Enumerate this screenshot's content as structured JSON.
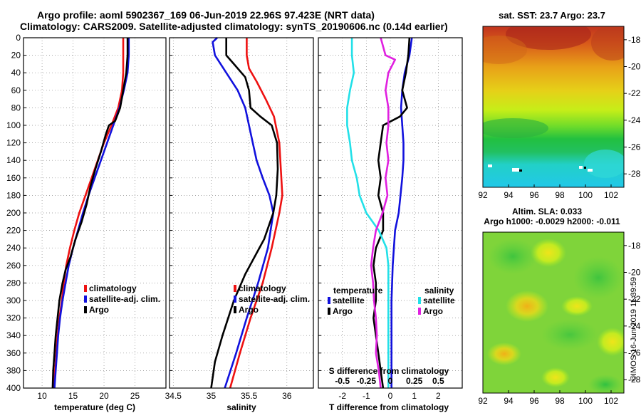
{
  "header": {
    "line1": "Argo profile: aoml 5902367_169 06-Jun-2019 22.96S 97.423E (NRT data)",
    "line2": "Climatology: CARS2009. Satellite-adjusted climatology: synTS_20190606.nc (0.14d earlier)"
  },
  "colors": {
    "climatology": "#ee1111",
    "satellite": "#1111dd",
    "argo": "#000000",
    "sal_sat": "#22e0e8",
    "sal_argo": "#e020e0",
    "grid": "#888888"
  },
  "chart_data": [
    {
      "id": "temperature",
      "type": "line",
      "xlabel": "temperature (deg C)",
      "ylabel": "",
      "xlim": [
        7,
        30
      ],
      "ylim": [
        400,
        0
      ],
      "xticks": [
        10,
        15,
        20,
        25
      ],
      "yticks": [
        0,
        20,
        40,
        60,
        80,
        100,
        120,
        140,
        160,
        180,
        200,
        220,
        240,
        260,
        280,
        300,
        320,
        340,
        360,
        380,
        400
      ],
      "legend": [
        "climatology",
        "satellite-adj. clim.",
        "Argo"
      ],
      "series": [
        {
          "name": "climatology",
          "color": "#ee1111",
          "points": [
            [
              23.1,
              0
            ],
            [
              23.1,
              40
            ],
            [
              22.9,
              60
            ],
            [
              22.3,
              80
            ],
            [
              21.2,
              100
            ],
            [
              20.0,
              120
            ],
            [
              19.0,
              140
            ],
            [
              18.0,
              160
            ],
            [
              17.0,
              180
            ],
            [
              16.0,
              200
            ],
            [
              15.2,
              220
            ],
            [
              14.5,
              240
            ],
            [
              13.9,
              260
            ],
            [
              13.5,
              280
            ],
            [
              13.2,
              300
            ],
            [
              12.8,
              320
            ],
            [
              12.5,
              340
            ],
            [
              12.3,
              360
            ],
            [
              12.1,
              380
            ],
            [
              11.9,
              400
            ]
          ]
        },
        {
          "name": "satellite-adj. clim.",
          "color": "#1111dd",
          "points": [
            [
              24.0,
              0
            ],
            [
              24.0,
              20
            ],
            [
              23.8,
              40
            ],
            [
              23.2,
              60
            ],
            [
              22.5,
              80
            ],
            [
              21.5,
              100
            ],
            [
              20.5,
              120
            ],
            [
              19.5,
              140
            ],
            [
              18.5,
              160
            ],
            [
              17.5,
              180
            ],
            [
              16.6,
              200
            ],
            [
              15.8,
              220
            ],
            [
              15.0,
              240
            ],
            [
              14.3,
              260
            ],
            [
              13.8,
              280
            ],
            [
              13.3,
              300
            ],
            [
              12.9,
              320
            ],
            [
              12.6,
              340
            ],
            [
              12.4,
              360
            ],
            [
              12.2,
              380
            ],
            [
              12.0,
              400
            ]
          ]
        },
        {
          "name": "Argo",
          "color": "#000000",
          "points": [
            [
              23.8,
              0
            ],
            [
              23.8,
              20
            ],
            [
              23.6,
              40
            ],
            [
              23.1,
              60
            ],
            [
              22.6,
              80
            ],
            [
              21.8,
              95
            ],
            [
              20.8,
              100
            ],
            [
              20.3,
              110
            ],
            [
              19.5,
              130
            ],
            [
              18.6,
              150
            ],
            [
              17.8,
              170
            ],
            [
              17.2,
              190
            ],
            [
              16.4,
              210
            ],
            [
              15.4,
              230
            ],
            [
              14.6,
              250
            ],
            [
              13.8,
              265
            ],
            [
              13.3,
              280
            ],
            [
              12.8,
              300
            ],
            [
              12.5,
              320
            ],
            [
              12.2,
              340
            ],
            [
              12.0,
              360
            ],
            [
              11.8,
              380
            ],
            [
              11.7,
              400
            ]
          ]
        }
      ]
    },
    {
      "id": "salinity",
      "type": "line",
      "xlabel": "salinity",
      "ylabel": "",
      "xlim": [
        34.45,
        36.35
      ],
      "ylim": [
        400,
        0
      ],
      "xticks": [
        34.5,
        35,
        35.5,
        36
      ],
      "legend": [
        "climatology",
        "satellite-adj. clim.",
        "Argo"
      ],
      "series": [
        {
          "name": "climatology",
          "color": "#ee1111",
          "points": [
            [
              35.47,
              0
            ],
            [
              35.47,
              20
            ],
            [
              35.5,
              35
            ],
            [
              35.6,
              50
            ],
            [
              35.72,
              70
            ],
            [
              35.83,
              90
            ],
            [
              35.9,
              120
            ],
            [
              35.92,
              150
            ],
            [
              35.94,
              180
            ],
            [
              35.9,
              200
            ],
            [
              35.8,
              240
            ],
            [
              35.68,
              280
            ],
            [
              35.52,
              320
            ],
            [
              35.38,
              360
            ],
            [
              35.25,
              400
            ]
          ]
        },
        {
          "name": "satellite-adj. clim.",
          "color": "#1111dd",
          "points": [
            [
              35.08,
              0
            ],
            [
              35.02,
              5
            ],
            [
              35.05,
              20
            ],
            [
              35.2,
              40
            ],
            [
              35.35,
              60
            ],
            [
              35.45,
              80
            ],
            [
              35.5,
              100
            ],
            [
              35.55,
              120
            ],
            [
              35.6,
              140
            ],
            [
              35.68,
              160
            ],
            [
              35.77,
              180
            ],
            [
              35.82,
              200
            ],
            [
              35.75,
              240
            ],
            [
              35.62,
              280
            ],
            [
              35.47,
              320
            ],
            [
              35.33,
              360
            ],
            [
              35.18,
              400
            ]
          ]
        },
        {
          "name": "Argo",
          "color": "#000000",
          "points": [
            [
              35.2,
              0
            ],
            [
              35.2,
              20
            ],
            [
              35.3,
              30
            ],
            [
              35.45,
              45
            ],
            [
              35.5,
              60
            ],
            [
              35.52,
              80
            ],
            [
              35.65,
              90
            ],
            [
              35.8,
              100
            ],
            [
              35.87,
              120
            ],
            [
              35.88,
              150
            ],
            [
              35.86,
              180
            ],
            [
              35.82,
              200
            ],
            [
              35.7,
              230
            ],
            [
              35.45,
              270
            ],
            [
              35.3,
              300
            ],
            [
              35.15,
              340
            ],
            [
              35.05,
              370
            ],
            [
              35.0,
              400
            ]
          ]
        }
      ]
    },
    {
      "id": "differences",
      "type": "line",
      "xlabel": "T difference from climatology",
      "x2label": "S difference from climatology",
      "xlim": [
        -3,
        3
      ],
      "x2lim": [
        -0.75,
        0.75
      ],
      "ylim": [
        400,
        0
      ],
      "xticks": [
        -2,
        -1,
        0,
        1,
        2
      ],
      "x2ticks": [
        -0.5,
        -0.25,
        0,
        0.25,
        0.5
      ],
      "legend_temperature": {
        "title": "temperature",
        "items": [
          "satellite",
          "Argo"
        ]
      },
      "legend_salinity": {
        "title": "salinity",
        "items": [
          "satellite",
          "Argo"
        ]
      },
      "series": [
        {
          "name": "T satellite",
          "color": "#1111dd",
          "points": [
            [
              0.9,
              0
            ],
            [
              0.8,
              20
            ],
            [
              0.6,
              40
            ],
            [
              0.5,
              60
            ],
            [
              0.45,
              80
            ],
            [
              0.5,
              100
            ],
            [
              0.55,
              120
            ],
            [
              0.55,
              140
            ],
            [
              0.5,
              160
            ],
            [
              0.35,
              200
            ],
            [
              0.2,
              220
            ],
            [
              0.1,
              260
            ],
            [
              0.05,
              300
            ],
            [
              0.05,
              340
            ],
            [
              0.05,
              400
            ]
          ]
        },
        {
          "name": "T Argo",
          "color": "#000000",
          "points": [
            [
              0.8,
              0
            ],
            [
              0.75,
              20
            ],
            [
              0.65,
              40
            ],
            [
              0.5,
              60
            ],
            [
              0.6,
              70
            ],
            [
              0.7,
              80
            ],
            [
              0.4,
              90
            ],
            [
              -0.3,
              100
            ],
            [
              -0.4,
              120
            ],
            [
              -0.5,
              140
            ],
            [
              -0.4,
              160
            ],
            [
              -0.5,
              180
            ],
            [
              -0.3,
              200
            ],
            [
              -0.3,
              220
            ],
            [
              -0.6,
              240
            ],
            [
              -0.7,
              260
            ],
            [
              -0.6,
              280
            ],
            [
              -0.6,
              300
            ],
            [
              -0.7,
              320
            ],
            [
              -0.6,
              340
            ],
            [
              -0.5,
              360
            ],
            [
              -0.4,
              380
            ],
            [
              -0.3,
              400
            ]
          ]
        },
        {
          "name": "S satellite",
          "color": "#22e0e8",
          "axis": "x2",
          "points": [
            [
              -0.4,
              0
            ],
            [
              -0.4,
              20
            ],
            [
              -0.38,
              40
            ],
            [
              -0.42,
              60
            ],
            [
              -0.45,
              80
            ],
            [
              -0.45,
              100
            ],
            [
              -0.42,
              120
            ],
            [
              -0.4,
              140
            ],
            [
              -0.35,
              160
            ],
            [
              -0.32,
              180
            ],
            [
              -0.25,
              200
            ],
            [
              -0.12,
              220
            ],
            [
              -0.04,
              240
            ],
            [
              -0.02,
              260
            ],
            [
              -0.02,
              300
            ],
            [
              -0.02,
              340
            ],
            [
              -0.02,
              400
            ]
          ]
        },
        {
          "name": "S Argo",
          "color": "#e020e0",
          "axis": "x2",
          "points": [
            [
              -0.1,
              0
            ],
            [
              -0.05,
              20
            ],
            [
              0.05,
              25
            ],
            [
              -0.02,
              40
            ],
            [
              -0.05,
              60
            ],
            [
              -0.02,
              80
            ],
            [
              -0.02,
              100
            ],
            [
              -0.04,
              120
            ],
            [
              -0.02,
              140
            ],
            [
              -0.05,
              160
            ],
            [
              -0.03,
              180
            ],
            [
              -0.08,
              200
            ],
            [
              -0.15,
              220
            ],
            [
              -0.18,
              240
            ],
            [
              -0.2,
              260
            ],
            [
              -0.18,
              280
            ],
            [
              -0.17,
              300
            ],
            [
              -0.15,
              320
            ],
            [
              -0.14,
              340
            ],
            [
              -0.15,
              360
            ],
            [
              -0.12,
              380
            ],
            [
              -0.1,
              400
            ]
          ]
        }
      ]
    },
    {
      "id": "sst_map",
      "type": "heatmap",
      "title": "sat. SST: 23.7 Argo: 23.7",
      "xlim": [
        92,
        103
      ],
      "ylim": [
        -29,
        -17
      ],
      "xticks": [
        92,
        94,
        96,
        98,
        100,
        102
      ],
      "yticks": [
        -18,
        -20,
        -22,
        -24,
        -26,
        -28
      ]
    },
    {
      "id": "sla_map",
      "type": "heatmap",
      "title_line1": "Altim. SLA: 0.033",
      "title_line2": "Argo h1000: -0.0029 h2000: -0.011",
      "xlim": [
        92,
        103
      ],
      "ylim": [
        -29,
        -17
      ],
      "xticks": [
        92,
        94,
        96,
        98,
        100,
        102
      ],
      "yticks": [
        -18,
        -20,
        -22,
        -24,
        -26,
        -28
      ]
    }
  ],
  "credit": "©IMOS 16-Jun-2019 11:39:59"
}
